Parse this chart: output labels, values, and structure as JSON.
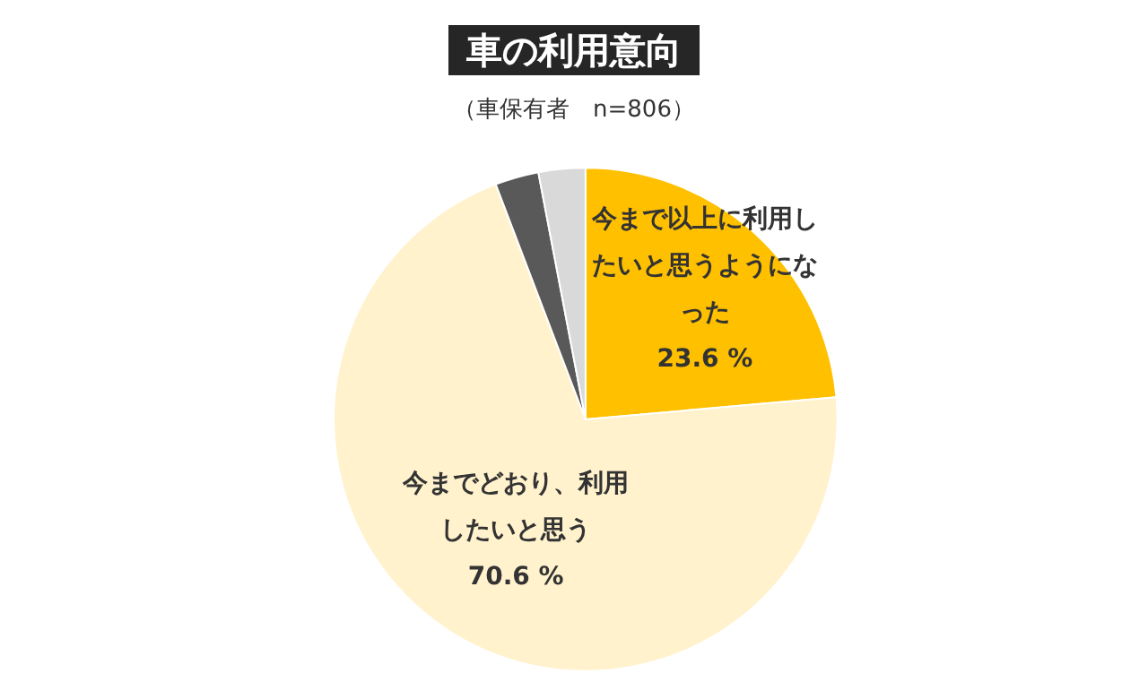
{
  "chart_data": {
    "type": "pie",
    "title": "車の利用意向",
    "subtitle": "（車保有者　n=806）",
    "categories": [
      "今まで以上に利用したいと思うようになった",
      "今までどおり、利用したいと思う",
      null,
      null
    ],
    "values": [
      23.6,
      70.6,
      2.8,
      3.0
    ],
    "colors": [
      "#ffc000",
      "#fff2cc",
      "#595959",
      "#d9d9d9"
    ],
    "value_labels": [
      "23.6 %",
      "70.6 %",
      null,
      null
    ],
    "legend": false
  }
}
